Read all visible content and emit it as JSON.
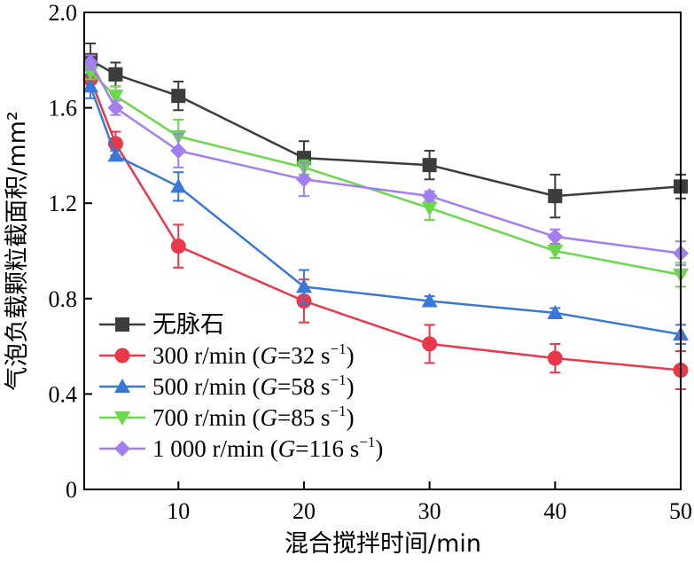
{
  "chart_data": {
    "type": "line",
    "xlabel": "混合搅拌时间/min",
    "ylabel": "气泡负载颗粒截面积/mm²",
    "xlim": [
      2.5,
      50
    ],
    "ylim": [
      0,
      2.0
    ],
    "xticks": [
      10,
      20,
      30,
      40,
      50
    ],
    "yticks": [
      0,
      0.4,
      0.8,
      1.2,
      1.6,
      2.0
    ],
    "ytick_labels": [
      "0",
      "0.4",
      "0.8",
      "1.2",
      "1.6",
      "2.0"
    ],
    "grid": false,
    "legend_position": "bottom-left",
    "series": [
      {
        "name": "无脉石",
        "color": "#3c3c3c",
        "marker": "square",
        "x": [
          3,
          5,
          10,
          20,
          30,
          40,
          50
        ],
        "y": [
          1.8,
          1.74,
          1.65,
          1.39,
          1.36,
          1.23,
          1.27
        ],
        "err": [
          0.07,
          0.05,
          0.06,
          0.07,
          0.06,
          0.09,
          0.05
        ]
      },
      {
        "name": "300 r/min (G=32 s⁻¹)",
        "legend_parts": [
          "300 r/min (",
          "G",
          "=32 s",
          "−1",
          ")"
        ],
        "color": "#e8384a",
        "marker": "circle",
        "x": [
          3,
          5,
          10,
          20,
          30,
          40,
          50
        ],
        "y": [
          1.72,
          1.45,
          1.02,
          0.79,
          0.61,
          0.55,
          0.5
        ],
        "err": [
          0.04,
          0.05,
          0.09,
          0.09,
          0.08,
          0.06,
          0.08
        ]
      },
      {
        "name": "500 r/min (G=58 s⁻¹)",
        "legend_parts": [
          "500 r/min (",
          "G",
          "=58 s",
          "−1",
          ")"
        ],
        "color": "#3a78d8",
        "marker": "triangle-up",
        "x": [
          3,
          5,
          10,
          20,
          30,
          40,
          50
        ],
        "y": [
          1.69,
          1.4,
          1.27,
          0.85,
          0.79,
          0.74,
          0.65
        ],
        "err": [
          0.05,
          0.02,
          0.06,
          0.07,
          0.02,
          0.02,
          0.04
        ]
      },
      {
        "name": "700 r/min (G=85 s⁻¹)",
        "legend_parts": [
          "700 r/min (",
          "G",
          "=85 s",
          "−1",
          ")"
        ],
        "color": "#6ad84a",
        "marker": "triangle-down",
        "x": [
          3,
          5,
          10,
          20,
          30,
          40,
          50
        ],
        "y": [
          1.75,
          1.65,
          1.48,
          1.35,
          1.18,
          1.0,
          0.9
        ],
        "err": [
          0.03,
          0.04,
          0.07,
          0.03,
          0.05,
          0.03,
          0.05
        ]
      },
      {
        "name": "1 000 r/min (G=116 s⁻¹)",
        "legend_parts": [
          "1 000 r/min (",
          "G",
          "=116 s",
          "−1",
          ")"
        ],
        "color": "#a37ef0",
        "marker": "diamond",
        "x": [
          3,
          5,
          10,
          20,
          30,
          40,
          50
        ],
        "y": [
          1.79,
          1.6,
          1.42,
          1.3,
          1.23,
          1.06,
          0.99
        ],
        "err": [
          0.03,
          0.03,
          0.07,
          0.07,
          0.02,
          0.03,
          0.05
        ]
      }
    ]
  }
}
